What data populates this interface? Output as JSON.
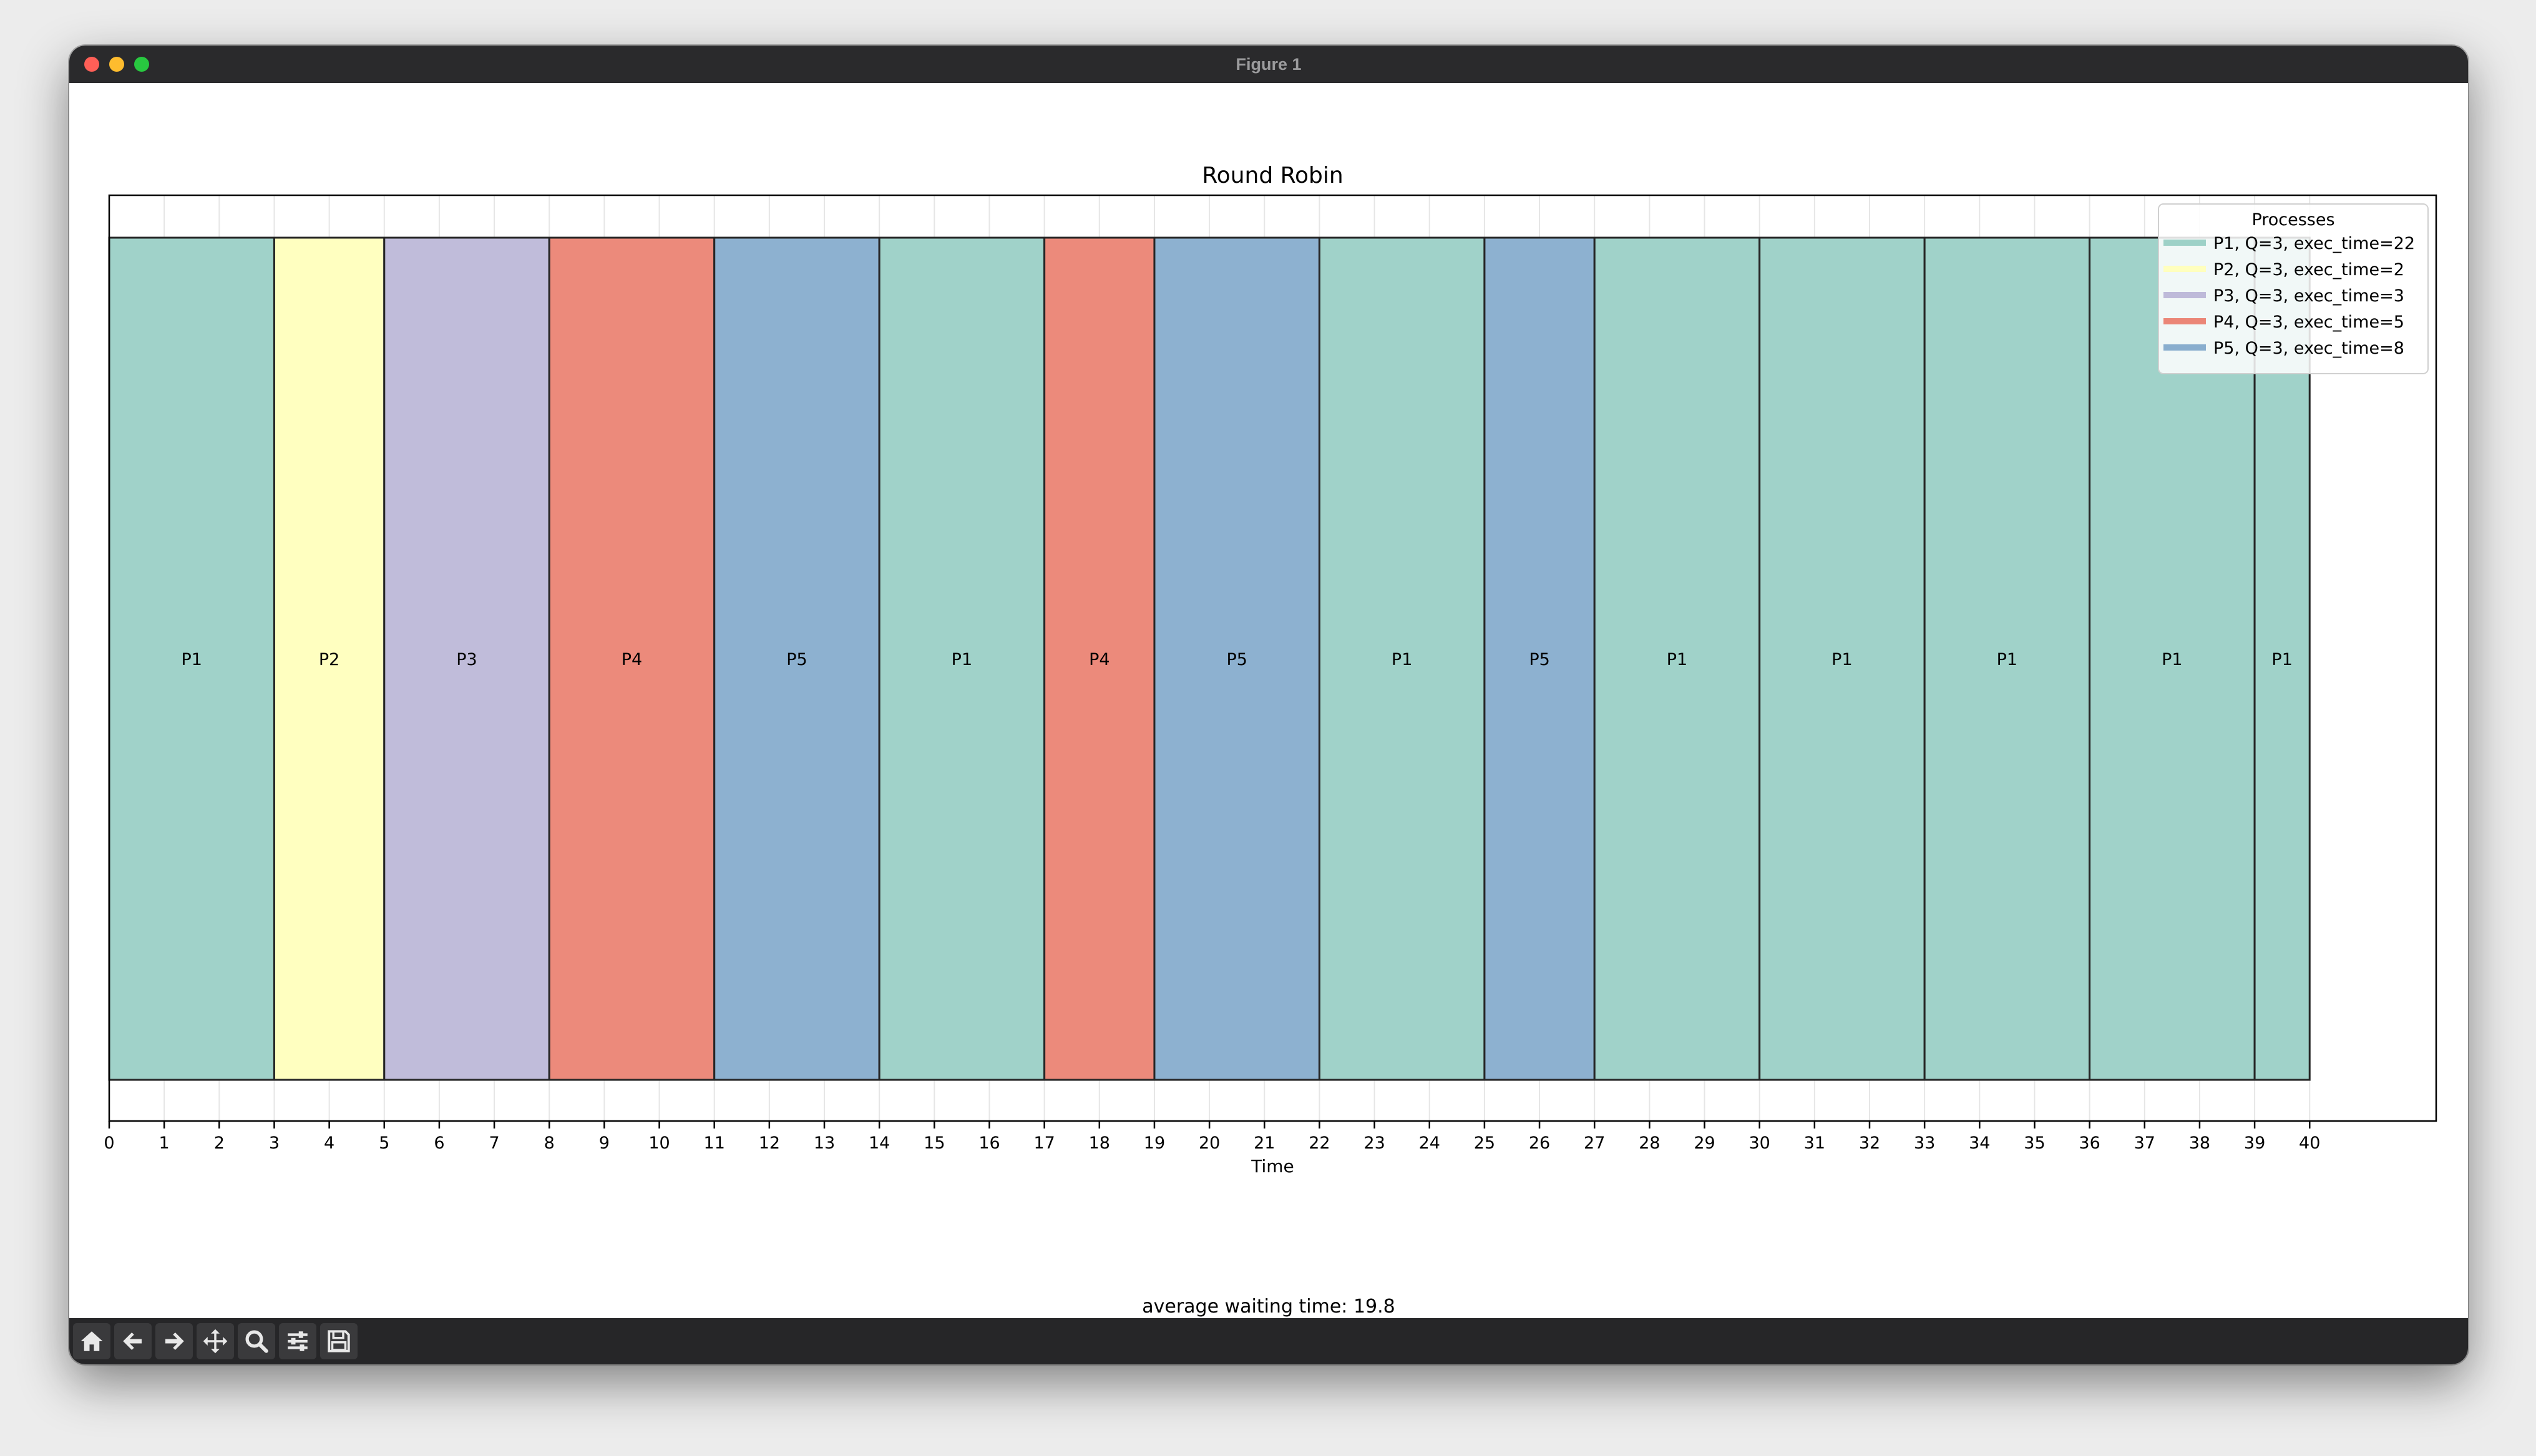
{
  "window": {
    "title": "Figure 1"
  },
  "footer": {
    "text": "average waiting time: 19.8"
  },
  "toolbar": {
    "tools": [
      {
        "name": "home-icon"
      },
      {
        "name": "back-icon"
      },
      {
        "name": "forward-icon"
      },
      {
        "name": "pan-icon"
      },
      {
        "name": "zoom-icon"
      },
      {
        "name": "configure-subplots-icon"
      },
      {
        "name": "save-icon"
      }
    ]
  },
  "chart_data": {
    "type": "bar",
    "title": "Round Robin",
    "xlabel": "Time",
    "ylabel": "",
    "xlim": [
      0,
      42.3
    ],
    "xticks": [
      0,
      1,
      2,
      3,
      4,
      5,
      6,
      7,
      8,
      9,
      10,
      11,
      12,
      13,
      14,
      15,
      16,
      17,
      18,
      19,
      20,
      21,
      22,
      23,
      24,
      25,
      26,
      27,
      28,
      29,
      30,
      31,
      32,
      33,
      34,
      35,
      36,
      37,
      38,
      39,
      40
    ],
    "grid": true,
    "legend": {
      "title": "Processes",
      "position": "top-right",
      "entries": [
        {
          "label": "P1, Q=3, exec_time=22",
          "color": "#9dd1c7"
        },
        {
          "label": "P2, Q=3, exec_time=2",
          "color": "#ffffbe"
        },
        {
          "label": "P3, Q=3, exec_time=3",
          "color": "#bebad9"
        },
        {
          "label": "P4, Q=3, exec_time=5",
          "color": "#eb8677"
        },
        {
          "label": "P5, Q=3, exec_time=8",
          "color": "#89aece"
        }
      ]
    },
    "segments": [
      {
        "process": "P1",
        "start": 0,
        "end": 3
      },
      {
        "process": "P2",
        "start": 3,
        "end": 5
      },
      {
        "process": "P3",
        "start": 5,
        "end": 8
      },
      {
        "process": "P4",
        "start": 8,
        "end": 11
      },
      {
        "process": "P5",
        "start": 11,
        "end": 14
      },
      {
        "process": "P1",
        "start": 14,
        "end": 17
      },
      {
        "process": "P4",
        "start": 17,
        "end": 19
      },
      {
        "process": "P5",
        "start": 19,
        "end": 22
      },
      {
        "process": "P1",
        "start": 22,
        "end": 25
      },
      {
        "process": "P5",
        "start": 25,
        "end": 27
      },
      {
        "process": "P1",
        "start": 27,
        "end": 30
      },
      {
        "process": "P1",
        "start": 30,
        "end": 33
      },
      {
        "process": "P1",
        "start": 33,
        "end": 36
      },
      {
        "process": "P1",
        "start": 36,
        "end": 39
      },
      {
        "process": "P1",
        "start": 39,
        "end": 40
      }
    ],
    "colors": {
      "P1": "#9dd1c7",
      "P2": "#ffffbe",
      "P3": "#bebad9",
      "P4": "#eb8677",
      "P5": "#89aece"
    }
  }
}
